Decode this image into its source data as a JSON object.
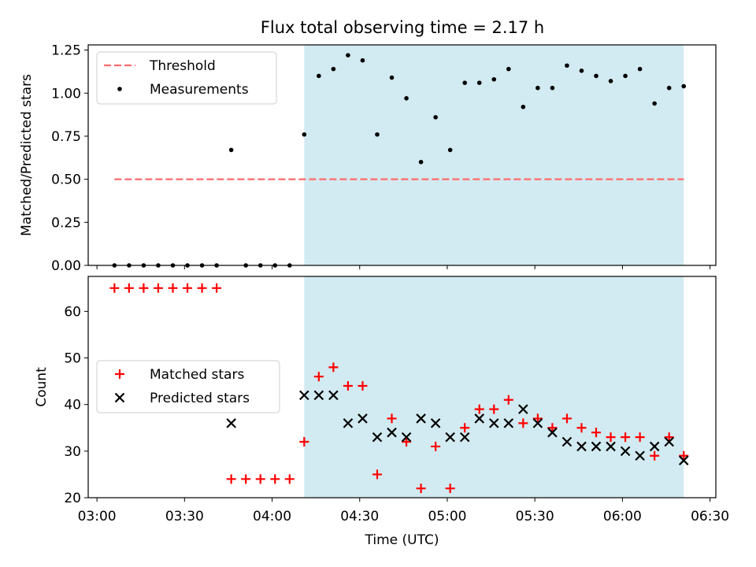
{
  "title": "Flux total observing time = 2.17 h",
  "colors": {
    "threshold": "#ff6b6b",
    "measurement": "#000000",
    "matched": "#ff0000",
    "predicted": "#000000",
    "shade": "#add8e6"
  },
  "chart_data": [
    {
      "type": "scatter",
      "panel": "top",
      "ylabel": "Matched/Predicted stars",
      "xlabel": "",
      "xlim": [
        "02:57",
        "06:32"
      ],
      "ylim": [
        0,
        1.28
      ],
      "y_ticks": [
        "0.00",
        "0.25",
        "0.50",
        "0.75",
        "1.00",
        "1.25"
      ],
      "y_tick_values": [
        0,
        0.25,
        0.5,
        0.75,
        1.0,
        1.25
      ],
      "shaded_region": [
        "04:11",
        "06:21"
      ],
      "legend": {
        "position": "upper-left",
        "entries": [
          "Threshold",
          "Measurements"
        ]
      },
      "series": [
        {
          "name": "Threshold",
          "style": "dashed-line",
          "x": [
            "03:06",
            "06:21"
          ],
          "y": [
            0.5,
            0.5
          ]
        },
        {
          "name": "Measurements",
          "style": "dots",
          "x": [
            "03:06",
            "03:11",
            "03:16",
            "03:21",
            "03:26",
            "03:31",
            "03:36",
            "03:41",
            "03:46",
            "03:51",
            "03:56",
            "04:01",
            "04:06",
            "04:11",
            "04:16",
            "04:21",
            "04:26",
            "04:31",
            "04:36",
            "04:41",
            "04:46",
            "04:51",
            "04:56",
            "05:01",
            "05:06",
            "05:11",
            "05:16",
            "05:21",
            "05:26",
            "05:31",
            "05:36",
            "05:41",
            "05:46",
            "05:51",
            "05:56",
            "06:01",
            "06:06",
            "06:11",
            "06:16",
            "06:21"
          ],
          "y": [
            0,
            0,
            0,
            0,
            0,
            0,
            0,
            0,
            0.67,
            0,
            0,
            0,
            0,
            0.76,
            1.1,
            1.14,
            1.22,
            1.19,
            0.76,
            1.09,
            0.97,
            0.6,
            0.86,
            0.67,
            1.06,
            1.06,
            1.08,
            1.14,
            0.92,
            1.03,
            1.03,
            1.16,
            1.13,
            1.1,
            1.07,
            1.1,
            1.14,
            0.94,
            1.03,
            1.04
          ]
        }
      ]
    },
    {
      "type": "scatter",
      "panel": "bottom",
      "ylabel": "Count",
      "xlabel": "Time (UTC)",
      "xlim": [
        "02:57",
        "06:32"
      ],
      "ylim": [
        20,
        67.5
      ],
      "y_ticks": [
        "20",
        "30",
        "40",
        "50",
        "60"
      ],
      "y_tick_values": [
        20,
        30,
        40,
        50,
        60
      ],
      "x_ticks": [
        "03:00",
        "03:30",
        "04:00",
        "04:30",
        "05:00",
        "05:30",
        "06:00",
        "06:30"
      ],
      "shaded_region": [
        "04:11",
        "06:21"
      ],
      "legend": {
        "position": "center-left",
        "entries": [
          "Matched stars",
          "Predicted stars"
        ]
      },
      "series": [
        {
          "name": "Matched stars",
          "style": "plus",
          "x": [
            "03:06",
            "03:11",
            "03:16",
            "03:21",
            "03:26",
            "03:31",
            "03:36",
            "03:41",
            "03:46",
            "03:51",
            "03:56",
            "04:01",
            "04:06",
            "04:11",
            "04:16",
            "04:21",
            "04:26",
            "04:31",
            "04:36",
            "04:41",
            "04:46",
            "04:51",
            "04:56",
            "05:01",
            "05:06",
            "05:11",
            "05:16",
            "05:21",
            "05:26",
            "05:31",
            "05:36",
            "05:41",
            "05:46",
            "05:51",
            "05:56",
            "06:01",
            "06:06",
            "06:11",
            "06:16",
            "06:21"
          ],
          "y": [
            65,
            65,
            65,
            65,
            65,
            65,
            65,
            65,
            24,
            24,
            24,
            24,
            24,
            32,
            46,
            48,
            44,
            44,
            25,
            37,
            32,
            22,
            31,
            22,
            35,
            39,
            39,
            41,
            36,
            37,
            35,
            37,
            35,
            34,
            33,
            33,
            33,
            29,
            33,
            29
          ]
        },
        {
          "name": "Predicted stars",
          "style": "x",
          "x": [
            "03:46",
            "04:11",
            "04:16",
            "04:21",
            "04:26",
            "04:31",
            "04:36",
            "04:41",
            "04:46",
            "04:51",
            "04:56",
            "05:01",
            "05:06",
            "05:11",
            "05:16",
            "05:21",
            "05:26",
            "05:31",
            "05:36",
            "05:41",
            "05:46",
            "05:51",
            "05:56",
            "06:01",
            "06:06",
            "06:11",
            "06:16",
            "06:21"
          ],
          "y": [
            36,
            42,
            42,
            42,
            36,
            37,
            33,
            34,
            33,
            37,
            36,
            33,
            33,
            37,
            36,
            36,
            39,
            36,
            34,
            32,
            31,
            31,
            31,
            30,
            29,
            31,
            32,
            28
          ]
        }
      ]
    }
  ]
}
